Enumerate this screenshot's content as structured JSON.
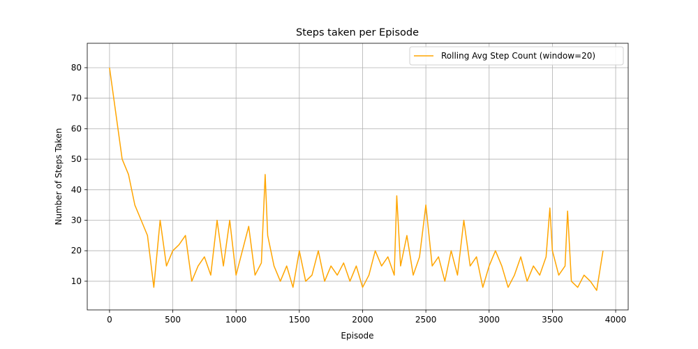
{
  "chart_data": {
    "type": "line",
    "title": "Steps taken per Episode",
    "xlabel": "Episode",
    "ylabel": "Number of Steps Taken",
    "x": [
      0,
      50,
      100,
      150,
      200,
      250,
      300,
      350,
      400,
      450,
      500,
      550,
      600,
      650,
      700,
      750,
      800,
      850,
      900,
      950,
      1000,
      1050,
      1100,
      1150,
      1200,
      1230,
      1250,
      1300,
      1350,
      1400,
      1450,
      1500,
      1550,
      1600,
      1650,
      1700,
      1750,
      1800,
      1850,
      1900,
      1950,
      2000,
      2050,
      2100,
      2150,
      2200,
      2250,
      2270,
      2300,
      2350,
      2400,
      2450,
      2500,
      2550,
      2600,
      2650,
      2700,
      2750,
      2800,
      2850,
      2900,
      2950,
      3000,
      3050,
      3100,
      3150,
      3200,
      3250,
      3300,
      3350,
      3400,
      3450,
      3480,
      3500,
      3550,
      3600,
      3620,
      3650,
      3700,
      3750,
      3800,
      3850,
      3900
    ],
    "series": [
      {
        "name": "Rolling Avg Step Count (window=20)",
        "color": "#ffa500",
        "values": [
          80,
          65,
          50,
          45,
          35,
          30,
          25,
          8,
          30,
          15,
          20,
          22,
          25,
          10,
          15,
          18,
          12,
          30,
          15,
          30,
          12,
          20,
          28,
          12,
          16,
          45,
          25,
          15,
          10,
          15,
          8,
          20,
          10,
          12,
          20,
          10,
          15,
          12,
          16,
          10,
          15,
          8,
          12,
          20,
          15,
          18,
          12,
          38,
          15,
          25,
          12,
          18,
          35,
          15,
          18,
          10,
          20,
          12,
          30,
          15,
          18,
          8,
          15,
          20,
          15,
          8,
          12,
          18,
          10,
          15,
          12,
          18,
          34,
          20,
          12,
          15,
          33,
          10,
          8,
          12,
          10,
          7,
          20
        ]
      }
    ],
    "xlim": [
      -176,
      4099
    ],
    "ylim": [
      0.6,
      88
    ],
    "xticks": [
      0,
      500,
      1000,
      1500,
      2000,
      2500,
      3000,
      3500,
      4000
    ],
    "yticks": [
      10,
      20,
      30,
      40,
      50,
      60,
      70,
      80
    ],
    "grid": true,
    "legend": "upper right"
  }
}
